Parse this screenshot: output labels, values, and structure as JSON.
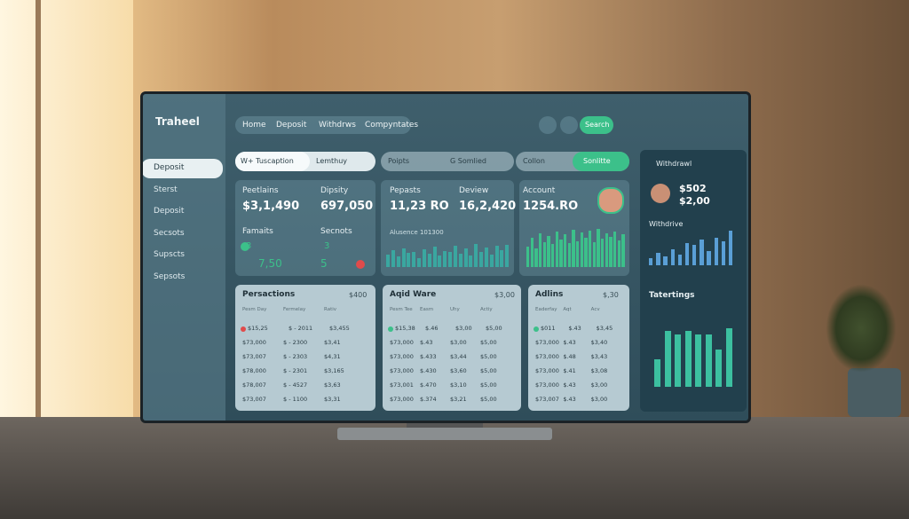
{
  "brand": "Traheel",
  "nav": [
    "Home",
    "Deposit",
    "Withdrws",
    "Compyntates"
  ],
  "search": "Search",
  "sidebar": [
    "Deposit",
    "Sterst",
    "Deposit",
    "Secsots",
    "Supscts",
    "Sepsots"
  ],
  "tabs": [
    [
      "W+ Tuscaption",
      "Lemthuy"
    ],
    [
      "Poipts",
      "G Somlied"
    ],
    [
      "Collon",
      "Sonlitte"
    ]
  ],
  "stats": [
    {
      "label": "Peetlains",
      "value": "$3,1,490"
    },
    {
      "label": "Dipsity",
      "value": "697,050"
    },
    {
      "label": "Pepasts",
      "value": "11,23 RO"
    },
    {
      "label": "Deview",
      "value": "16,2,420"
    },
    {
      "label": "Account",
      "value": "1254.RO"
    }
  ],
  "minis": [
    {
      "title": "Famaits",
      "top": "3",
      "bottom": "7,50"
    },
    {
      "title": "Secnots",
      "top": "3",
      "bottom": "5"
    }
  ],
  "wave_chart": {
    "title": "Alusence 101300",
    "ylim": [
      0,
      100
    ],
    "values": [
      40,
      55,
      35,
      60,
      45,
      50,
      30,
      58,
      42,
      65,
      38,
      52,
      48,
      70,
      44,
      60,
      36,
      75,
      50,
      62,
      40,
      68,
      55,
      72
    ]
  },
  "wave_chart_2": {
    "ylim": [
      0,
      100
    ],
    "values": [
      50,
      70,
      45,
      80,
      60,
      75,
      55,
      85,
      65,
      78,
      58,
      90,
      62,
      82,
      70,
      88,
      60,
      92,
      68,
      80,
      72,
      86,
      64,
      78
    ]
  },
  "tables": [
    {
      "title": "Persactions",
      "total": "$400",
      "rows": [
        [
          "Pesm Day",
          "Fermelay",
          "Rativ"
        ],
        [
          "$15,25",
          "$ - 2011",
          "$3,455"
        ],
        [
          "$73,000",
          "$ - 2300",
          "$3,41"
        ],
        [
          "$73,007",
          "$ - 2303",
          "$4,31"
        ],
        [
          "$78,000",
          "$ - 2301",
          "$3,165"
        ],
        [
          "$78,007",
          "$ - 4527",
          "$3,63"
        ],
        [
          "$73,007",
          "$ - 1100",
          "$3,31"
        ]
      ]
    },
    {
      "title": "Aqid Ware",
      "total": "$3,00",
      "rows": [
        [
          "Pesm Tee",
          "Easm",
          "Uhy",
          "Actiy"
        ],
        [
          "$15,38",
          "$.46",
          "$3,00",
          "$5,00"
        ],
        [
          "$73,000",
          "$.43",
          "$3,00",
          "$5,00"
        ],
        [
          "$73,000",
          "$.433",
          "$3,44",
          "$5,00"
        ],
        [
          "$73,000",
          "$.430",
          "$3,60",
          "$5,00"
        ],
        [
          "$73,001",
          "$.470",
          "$3,10",
          "$5,00"
        ],
        [
          "$73,000",
          "$.374",
          "$3,21",
          "$5,00"
        ]
      ]
    },
    {
      "title": "Adlins",
      "total": "$,30",
      "rows": [
        [
          "Eaderfay",
          "Aqt",
          "Acv"
        ],
        [
          "$011",
          "$.43",
          "$3,45"
        ],
        [
          "$73,000",
          "$.43",
          "$3,40"
        ],
        [
          "$73,000",
          "$.48",
          "$3,43"
        ],
        [
          "$73,000",
          "$.41",
          "$3,08"
        ],
        [
          "$73,000",
          "$.43",
          "$3,00"
        ],
        [
          "$73,007",
          "$.43",
          "$3,00"
        ]
      ]
    }
  ],
  "side_panel": {
    "title": "Withdrawl",
    "amount": "$502",
    "amount2": "$2,00",
    "chart_title": "Withdrive",
    "chart": {
      "ylim": [
        0,
        100
      ],
      "values": [
        20,
        35,
        25,
        45,
        30,
        60,
        55,
        70,
        40,
        75,
        65,
        95
      ]
    },
    "chart2_title": "Tatertings",
    "chart2": {
      "ylim": [
        0,
        100
      ],
      "values": [
        45,
        90,
        85,
        90,
        85,
        85,
        60,
        95
      ]
    }
  }
}
